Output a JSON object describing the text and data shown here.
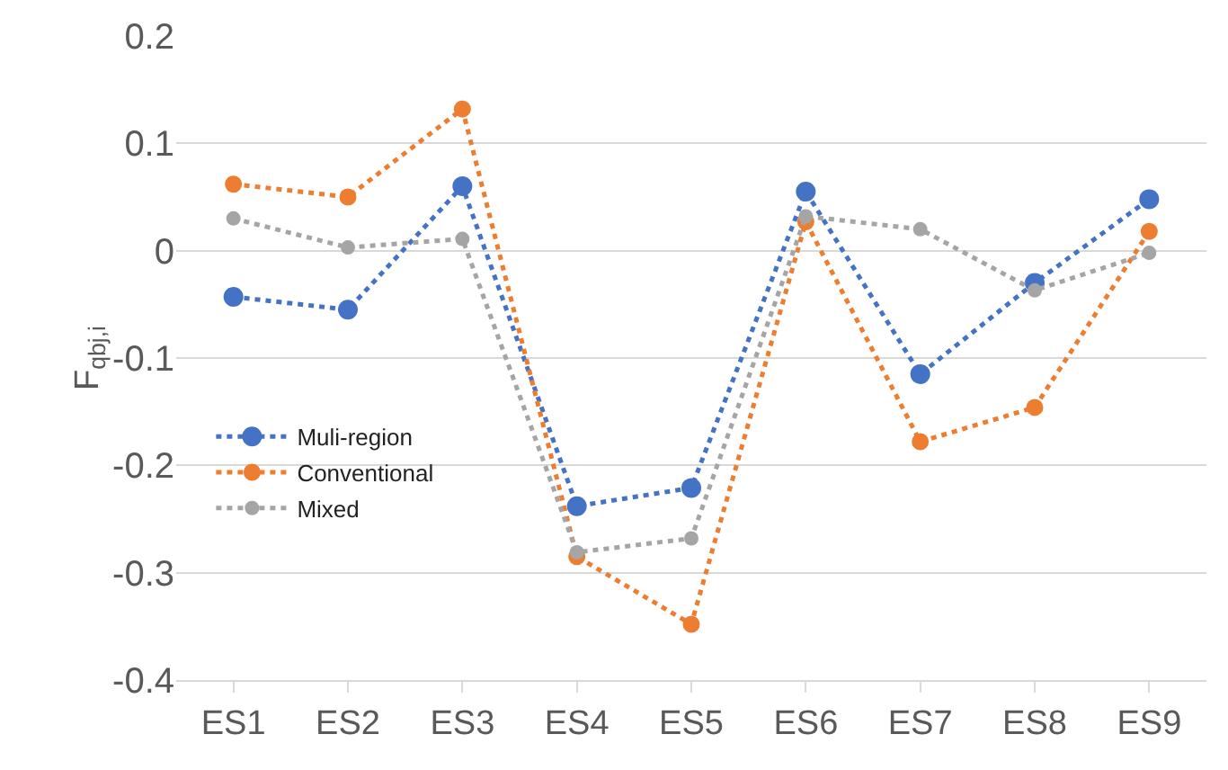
{
  "chart_data": {
    "type": "line",
    "ylabel": "F$_{qbj,i}$",
    "categories": [
      "ES1",
      "ES2",
      "ES3",
      "ES4",
      "ES5",
      "ES6",
      "ES7",
      "ES8",
      "ES9"
    ],
    "series": [
      {
        "name": "Muli-region",
        "color": "#4472c4",
        "values": [
          -0.043,
          -0.055,
          0.06,
          -0.238,
          -0.221,
          0.055,
          -0.115,
          -0.03,
          0.048
        ]
      },
      {
        "name": "Conventional",
        "color": "#ed7d31",
        "values": [
          0.062,
          0.05,
          0.132,
          -0.285,
          -0.348,
          0.027,
          -0.178,
          -0.146,
          0.018
        ]
      },
      {
        "name": "Mixed",
        "color": "#a5a5a5",
        "values": [
          0.03,
          0.003,
          0.011,
          -0.281,
          -0.268,
          0.032,
          0.02,
          -0.037,
          -0.002
        ]
      }
    ],
    "ylim": [
      -0.4,
      0.2
    ],
    "yticks": [
      -0.4,
      -0.3,
      -0.2,
      -0.1,
      0,
      0.1,
      0.2
    ],
    "grid": "y",
    "legend": "left",
    "marker": "circle",
    "line_style": "dotted"
  }
}
